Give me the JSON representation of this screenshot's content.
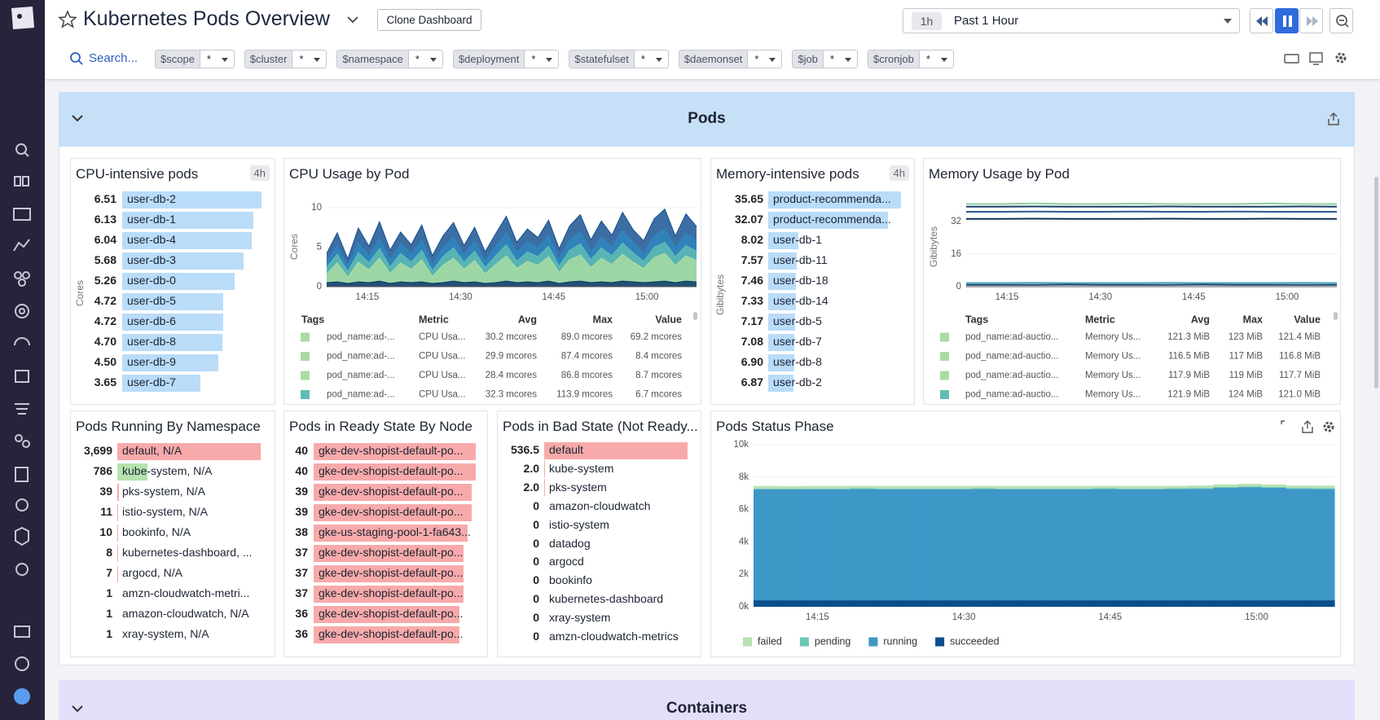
{
  "header": {
    "title": "Kubernetes Pods Overview",
    "clone_button": "Clone Dashboard",
    "time_short": "1h",
    "time_range": "Past 1 Hour"
  },
  "filters": {
    "search": "Search...",
    "variables": [
      {
        "name": "$scope",
        "value": "*"
      },
      {
        "name": "$cluster",
        "value": "*"
      },
      {
        "name": "$namespace",
        "value": "*"
      },
      {
        "name": "$deployment",
        "value": "*"
      },
      {
        "name": "$statefulset",
        "value": "*"
      },
      {
        "name": "$daemonset",
        "value": "*"
      },
      {
        "name": "$job",
        "value": "*"
      },
      {
        "name": "$cronjob",
        "value": "*"
      }
    ]
  },
  "groups": {
    "pods": "Pods",
    "containers": "Containers"
  },
  "widgets": {
    "cpu_intensive": {
      "title": "CPU-intensive pods",
      "badge": "4h",
      "axis_label": "Cores",
      "color": "#b9dcf9",
      "rows": [
        {
          "value": 6.51,
          "label": "user-db-2"
        },
        {
          "value": 6.13,
          "label": "user-db-1"
        },
        {
          "value": 6.04,
          "label": "user-db-4"
        },
        {
          "value": 5.68,
          "label": "user-db-3"
        },
        {
          "value": 5.26,
          "label": "user-db-0"
        },
        {
          "value": 4.72,
          "label": "user-db-5"
        },
        {
          "value": 4.72,
          "label": "user-db-6"
        },
        {
          "value": 4.7,
          "value_label": "4.70",
          "label": "user-db-8"
        },
        {
          "value": 4.5,
          "value_label": "4.50",
          "label": "user-db-9"
        },
        {
          "value": 3.65,
          "label": "user-db-7"
        }
      ]
    },
    "cpu_usage": {
      "title": "CPU Usage by Pod",
      "type": "area",
      "y_label": "Cores",
      "ylim": [
        0,
        10
      ],
      "yticks": [
        0,
        5,
        10
      ],
      "xticks": [
        "14:15",
        "14:30",
        "14:45",
        "15:00"
      ],
      "series": [
        {
          "color": "#1b5593",
          "values": [
            4.2,
            6.8,
            3.5,
            7.4,
            5.1,
            8.2,
            4.6,
            6.9,
            5.3,
            7.8,
            3.9,
            6.4,
            8.1,
            5.2,
            7.5,
            4.4,
            6.7,
            8.9,
            5.6,
            7.3,
            6.2,
            8.4,
            4.8,
            7.7,
            9.1,
            5.9,
            8.3,
            6.5,
            9.4,
            7.2,
            5.8,
            8.6,
            9.8,
            6.4,
            9.2,
            7.6
          ]
        },
        {
          "color": "#2f86c0",
          "values": [
            3.1,
            5.2,
            2.6,
            5.5,
            3.9,
            6.1,
            3.3,
            5.4,
            4.1,
            5.9,
            2.8,
            4.9,
            6.2,
            4.0,
            5.8,
            3.2,
            5.1,
            6.8,
            4.3,
            5.7,
            4.9,
            6.5,
            3.5,
            5.9,
            6.9,
            4.4,
            6.3,
            5.0,
            7.1,
            5.6,
            4.2,
            6.4,
            7.3,
            4.9,
            6.8,
            5.8
          ]
        },
        {
          "color": "#5fbcb4",
          "values": [
            2.4,
            4.1,
            1.9,
            4.3,
            3.0,
            4.8,
            2.5,
            4.2,
            3.1,
            4.6,
            2.0,
            3.8,
            4.9,
            3.1,
            4.5,
            2.4,
            3.9,
            5.3,
            3.2,
            4.4,
            3.8,
            5.1,
            2.6,
            4.6,
            5.4,
            3.4,
            4.9,
            3.9,
            5.5,
            4.3,
            3.2,
            5.0,
            5.6,
            3.8,
            5.2,
            4.5
          ]
        },
        {
          "color": "#a9dca2",
          "values": [
            1.6,
            3.0,
            1.2,
            3.1,
            2.1,
            3.6,
            1.7,
            3.0,
            2.2,
            3.4,
            1.3,
            2.7,
            3.6,
            2.2,
            3.3,
            1.6,
            2.8,
            3.9,
            2.3,
            3.2,
            2.7,
            3.8,
            1.8,
            3.4,
            4.0,
            2.4,
            3.6,
            2.8,
            4.1,
            3.1,
            2.3,
            3.7,
            4.2,
            2.7,
            3.9,
            3.3
          ]
        },
        {
          "color": "#0e3a6a",
          "values": [
            0.5,
            0.6,
            0.4,
            0.6,
            0.5,
            0.7,
            0.4,
            0.6,
            0.5,
            0.6,
            0.4,
            0.5,
            0.7,
            0.5,
            0.6,
            0.4,
            0.5,
            0.7,
            0.5,
            0.6,
            0.5,
            0.7,
            0.4,
            0.6,
            0.7,
            0.5,
            0.6,
            0.5,
            0.7,
            0.6,
            0.5,
            0.6,
            0.7,
            0.5,
            0.7,
            0.6
          ]
        }
      ],
      "legend": {
        "columns": [
          "Tags",
          "Metric",
          "Avg",
          "Max",
          "Value"
        ],
        "rows": [
          [
            "pod_name:ad-...",
            "CPU Usa...",
            "30.2 mcores",
            "89.0 mcores",
            "69.2 mcores"
          ],
          [
            "pod_name:ad-...",
            "CPU Usa...",
            "29.9 mcores",
            "87.4 mcores",
            "8.4 mcores"
          ],
          [
            "pod_name:ad-...",
            "CPU Usa...",
            "28.4 mcores",
            "86.8 mcores",
            "8.7 mcores"
          ],
          [
            "pod_name:ad-...",
            "CPU Usa...",
            "32.3 mcores",
            "113.9 mcores",
            "6.7 mcores"
          ]
        ]
      }
    },
    "memory_intensive": {
      "title": "Memory-intensive pods",
      "badge": "4h",
      "axis_label": "Gibibytes",
      "color": "#b9dcf9",
      "rows": [
        {
          "value": 35.65,
          "label": "product-recommenda..."
        },
        {
          "value": 32.07,
          "label": "product-recommenda..."
        },
        {
          "value": 8.02,
          "label": "user-db-1"
        },
        {
          "value": 7.57,
          "label": "user-db-11"
        },
        {
          "value": 7.46,
          "label": "user-db-18"
        },
        {
          "value": 7.33,
          "label": "user-db-14"
        },
        {
          "value": 7.17,
          "label": "user-db-5"
        },
        {
          "value": 7.08,
          "label": "user-db-7"
        },
        {
          "value": 6.9,
          "value_label": "6.90",
          "label": "user-db-8"
        },
        {
          "value": 6.87,
          "label": "user-db-2"
        }
      ]
    },
    "memory_usage": {
      "title": "Memory Usage by Pod",
      "type": "line",
      "y_label": "Gibibytes",
      "ylim": [
        0,
        42
      ],
      "yticks": [
        0,
        16,
        32
      ],
      "xticks": [
        "14:15",
        "14:30",
        "14:45",
        "15:00"
      ],
      "series": [
        {
          "color": "#8fd19e",
          "values": [
            40.6,
            40.6,
            40.9,
            40.6,
            40.6,
            40.8,
            40.6,
            40.6,
            40.6,
            40.9,
            40.6,
            40.6
          ]
        },
        {
          "color": "#1a3f6e",
          "values": [
            39.3,
            39.3,
            39.4,
            39.3,
            39.3,
            39.3,
            39.4,
            39.3,
            39.3,
            39.3,
            39.4,
            39.3
          ]
        },
        {
          "color": "#2a5a94",
          "values": [
            36.8,
            36.8,
            36.9,
            36.8,
            36.8,
            36.9,
            36.8,
            36.8,
            36.9,
            36.8,
            36.8,
            36.8
          ]
        },
        {
          "color": "#0d2f57",
          "values": [
            33.3,
            33.3,
            33.4,
            33.3,
            33.3,
            33.3,
            33.4,
            33.3,
            33.3,
            33.4,
            33.3,
            33.3
          ]
        },
        {
          "color": "#4aa3b5",
          "values": [
            1.8,
            1.8,
            1.9,
            1.8,
            1.8,
            1.8,
            1.9,
            1.8,
            1.8,
            1.8,
            1.9,
            1.8
          ]
        },
        {
          "color": "#14406f",
          "values": [
            0.9,
            0.9,
            0.9,
            1.0,
            0.9,
            0.9,
            0.9,
            1.0,
            0.9,
            0.9,
            0.9,
            0.9
          ]
        }
      ],
      "legend": {
        "columns": [
          "Tags",
          "Metric",
          "Avg",
          "Max",
          "Value"
        ],
        "rows": [
          [
            "pod_name:ad-auctio...",
            "Memory Us...",
            "121.3 MiB",
            "123 MiB",
            "121.4 MiB"
          ],
          [
            "pod_name:ad-auctio...",
            "Memory Us...",
            "116.5 MiB",
            "117 MiB",
            "116.8 MiB"
          ],
          [
            "pod_name:ad-auctio...",
            "Memory Us...",
            "117.9 MiB",
            "119 MiB",
            "117.7 MiB"
          ],
          [
            "pod_name:ad-auctio...",
            "Memory Us...",
            "121.9 MiB",
            "124 MiB",
            "121.0 MiB"
          ]
        ]
      }
    },
    "pods_by_namespace": {
      "title": "Pods Running By Namespace",
      "color": "#f8aaaa",
      "rows": [
        {
          "value": 3699,
          "value_label": "3,699",
          "label": "default, N/A"
        },
        {
          "value": 786,
          "label": "kube-system, N/A",
          "color": "#b6e2ad"
        },
        {
          "value": 39,
          "label": "pks-system, N/A"
        },
        {
          "value": 11,
          "label": "istio-system, N/A"
        },
        {
          "value": 10,
          "label": "bookinfo, N/A"
        },
        {
          "value": 8,
          "label": "kubernetes-dashboard, ..."
        },
        {
          "value": 7,
          "label": "argocd, N/A"
        },
        {
          "value": 1,
          "label": "amzn-cloudwatch-metri..."
        },
        {
          "value": 1,
          "label": "amazon-cloudwatch, N/A"
        },
        {
          "value": 1,
          "label": "xray-system, N/A"
        }
      ]
    },
    "pods_ready_by_node": {
      "title": "Pods in Ready State By Node",
      "color": "#f8aaaa",
      "rows": [
        {
          "value": 40,
          "label": "gke-dev-shopist-default-po..."
        },
        {
          "value": 40,
          "label": "gke-dev-shopist-default-po..."
        },
        {
          "value": 39,
          "label": "gke-dev-shopist-default-po..."
        },
        {
          "value": 39,
          "label": "gke-dev-shopist-default-po..."
        },
        {
          "value": 38,
          "label": "gke-us-staging-pool-1-fa643..."
        },
        {
          "value": 37,
          "label": "gke-dev-shopist-default-po..."
        },
        {
          "value": 37,
          "label": "gke-dev-shopist-default-po..."
        },
        {
          "value": 37,
          "label": "gke-dev-shopist-default-po..."
        },
        {
          "value": 36,
          "label": "gke-dev-shopist-default-po..."
        },
        {
          "value": 36,
          "label": "gke-dev-shopist-default-po..."
        }
      ]
    },
    "pods_bad_state": {
      "title": "Pods in Bad State (Not Ready...",
      "color": "#f8aaaa",
      "rows": [
        {
          "value": 536.5,
          "label": "default"
        },
        {
          "value": 2,
          "value_label": "2.0",
          "label": "kube-system"
        },
        {
          "value": 2,
          "value_label": "2.0",
          "label": "pks-system"
        },
        {
          "value": 0,
          "label": "amazon-cloudwatch"
        },
        {
          "value": 0,
          "label": "istio-system"
        },
        {
          "value": 0,
          "label": "datadog"
        },
        {
          "value": 0,
          "label": "argocd"
        },
        {
          "value": 0,
          "label": "bookinfo"
        },
        {
          "value": 0,
          "label": "kubernetes-dashboard"
        },
        {
          "value": 0,
          "label": "xray-system"
        },
        {
          "value": 0,
          "label": "amzn-cloudwatch-metrics"
        }
      ]
    },
    "pods_status_phase": {
      "title": "Pods Status Phase",
      "type": "stacked_area",
      "ylim": [
        0,
        10000
      ],
      "yticks": [
        {
          "value": 0,
          "label": "0k"
        },
        {
          "value": 2000,
          "label": "2k"
        },
        {
          "value": 4000,
          "label": "4k"
        },
        {
          "value": 6000,
          "label": "6k"
        },
        {
          "value": 8000,
          "label": "8k"
        },
        {
          "value": 10000,
          "label": "10k"
        }
      ],
      "xticks": [
        "14:15",
        "14:30",
        "14:45",
        "15:00"
      ],
      "series": [
        {
          "name": "failed",
          "color": "#b6e2b0",
          "values": [
            150,
            150,
            150,
            150,
            150,
            150,
            150,
            150,
            150,
            150,
            150,
            150,
            150,
            150,
            150,
            150,
            150,
            150,
            150,
            150,
            150,
            150,
            150,
            150
          ]
        },
        {
          "name": "pending",
          "color": "#6cc6b8",
          "values": [
            50,
            50,
            50,
            50,
            50,
            50,
            50,
            50,
            50,
            50,
            50,
            50,
            50,
            50,
            50,
            50,
            50,
            50,
            50,
            50,
            50,
            50,
            50,
            50
          ]
        },
        {
          "name": "running",
          "color": "#3d97c7",
          "values": [
            6850,
            6840,
            6850,
            6850,
            6860,
            6850,
            6850,
            6850,
            6850,
            6860,
            6850,
            6850,
            6850,
            6850,
            6860,
            6850,
            6850,
            6860,
            6880,
            6950,
            6980,
            6940,
            6880,
            6870
          ]
        },
        {
          "name": "succeeded",
          "color": "#0b4f8c",
          "values": [
            400,
            400,
            400,
            400,
            400,
            400,
            400,
            400,
            400,
            400,
            400,
            400,
            400,
            400,
            400,
            400,
            400,
            400,
            400,
            400,
            400,
            400,
            400,
            400
          ]
        }
      ]
    }
  }
}
